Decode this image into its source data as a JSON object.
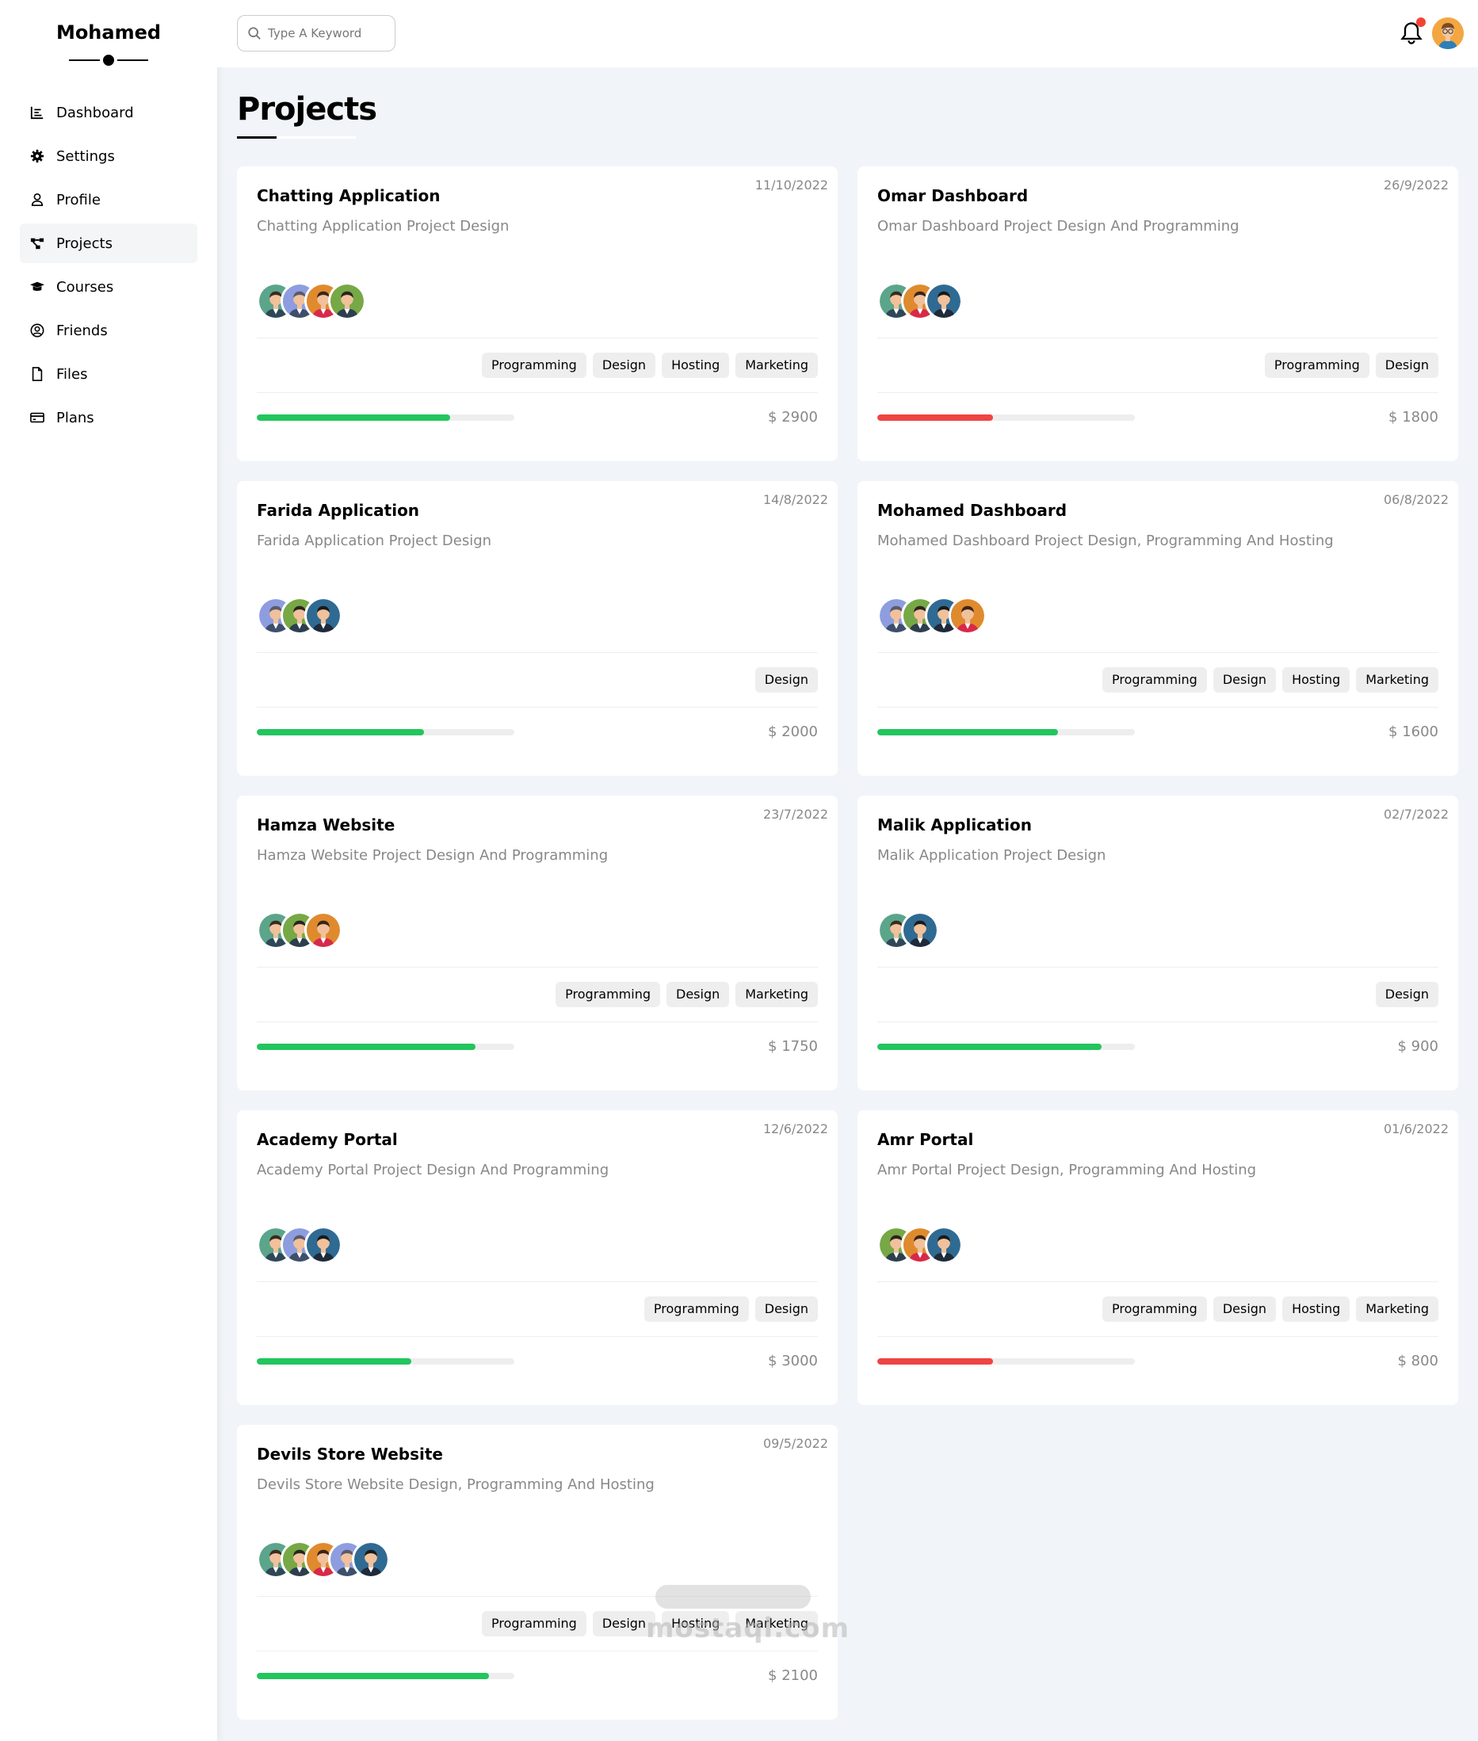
{
  "sidebar": {
    "brand": "Mohamed",
    "items": [
      {
        "label": "Dashboard",
        "icon": "chart-icon",
        "active": false
      },
      {
        "label": "Settings",
        "icon": "gear-icon",
        "active": false
      },
      {
        "label": "Profile",
        "icon": "user-icon",
        "active": false
      },
      {
        "label": "Projects",
        "icon": "diagram-icon",
        "active": true
      },
      {
        "label": "Courses",
        "icon": "graduation-cap-icon",
        "active": false
      },
      {
        "label": "Friends",
        "icon": "user-circle-icon",
        "active": false
      },
      {
        "label": "Files",
        "icon": "file-icon",
        "active": false
      },
      {
        "label": "Plans",
        "icon": "credit-card-icon",
        "active": false
      }
    ]
  },
  "header": {
    "search_placeholder": "Type A Keyword"
  },
  "main": {
    "title": "Projects",
    "projects": [
      {
        "title": "Chatting Application",
        "date": "11/10/2022",
        "description": "Chatting Application Project Design",
        "members": [
          "teal",
          "blue",
          "orange",
          "green"
        ],
        "tags": [
          "Programming",
          "Design",
          "Hosting",
          "Marketing"
        ],
        "progress": 0.75,
        "progress_color": "#22c55e",
        "price": "$ 2900"
      },
      {
        "title": "Omar Dashboard",
        "date": "26/9/2022",
        "description": "Omar Dashboard Project Design And Programming",
        "members": [
          "teal",
          "orange",
          "navy"
        ],
        "tags": [
          "Programming",
          "Design"
        ],
        "progress": 0.45,
        "progress_color": "#ef4444",
        "price": "$ 1800"
      },
      {
        "title": "Farida Application",
        "date": "14/8/2022",
        "description": "Farida Application Project Design",
        "members": [
          "blue",
          "green",
          "navy"
        ],
        "tags": [
          "Design"
        ],
        "progress": 0.65,
        "progress_color": "#22c55e",
        "price": "$ 2000"
      },
      {
        "title": "Mohamed Dashboard",
        "date": "06/8/2022",
        "description": "Mohamed Dashboard Project Design, Programming And Hosting",
        "members": [
          "blue",
          "green",
          "navy",
          "orange"
        ],
        "tags": [
          "Programming",
          "Design",
          "Hosting",
          "Marketing"
        ],
        "progress": 0.7,
        "progress_color": "#22c55e",
        "price": "$ 1600"
      },
      {
        "title": "Hamza Website",
        "date": "23/7/2022",
        "description": "Hamza Website Project Design And Programming",
        "members": [
          "teal",
          "green",
          "orange"
        ],
        "tags": [
          "Programming",
          "Design",
          "Marketing"
        ],
        "progress": 0.85,
        "progress_color": "#22c55e",
        "price": "$ 1750"
      },
      {
        "title": "Malik Application",
        "date": "02/7/2022",
        "description": "Malik Application Project Design",
        "members": [
          "teal",
          "navy"
        ],
        "tags": [
          "Design"
        ],
        "progress": 0.87,
        "progress_color": "#22c55e",
        "price": "$ 900"
      },
      {
        "title": "Academy Portal",
        "date": "12/6/2022",
        "description": "Academy Portal Project Design And Programming",
        "members": [
          "teal",
          "blue",
          "navy"
        ],
        "tags": [
          "Programming",
          "Design"
        ],
        "progress": 0.6,
        "progress_color": "#22c55e",
        "price": "$ 3000"
      },
      {
        "title": "Amr Portal",
        "date": "01/6/2022",
        "description": "Amr Portal Project Design, Programming And Hosting",
        "members": [
          "green",
          "orange",
          "navy"
        ],
        "tags": [
          "Programming",
          "Design",
          "Hosting",
          "Marketing"
        ],
        "progress": 0.45,
        "progress_color": "#ef4444",
        "price": "$ 800"
      },
      {
        "title": "Devils Store Website",
        "date": "09/5/2022",
        "description": "Devils Store Website Design, Programming And Hosting",
        "members": [
          "teal",
          "green",
          "orange",
          "blue",
          "navy"
        ],
        "tags": [
          "Programming",
          "Design",
          "Hosting",
          "Marketing"
        ],
        "progress": 0.9,
        "progress_color": "#22c55e",
        "price": "$ 2100"
      }
    ]
  },
  "watermark": "mostaql.com"
}
